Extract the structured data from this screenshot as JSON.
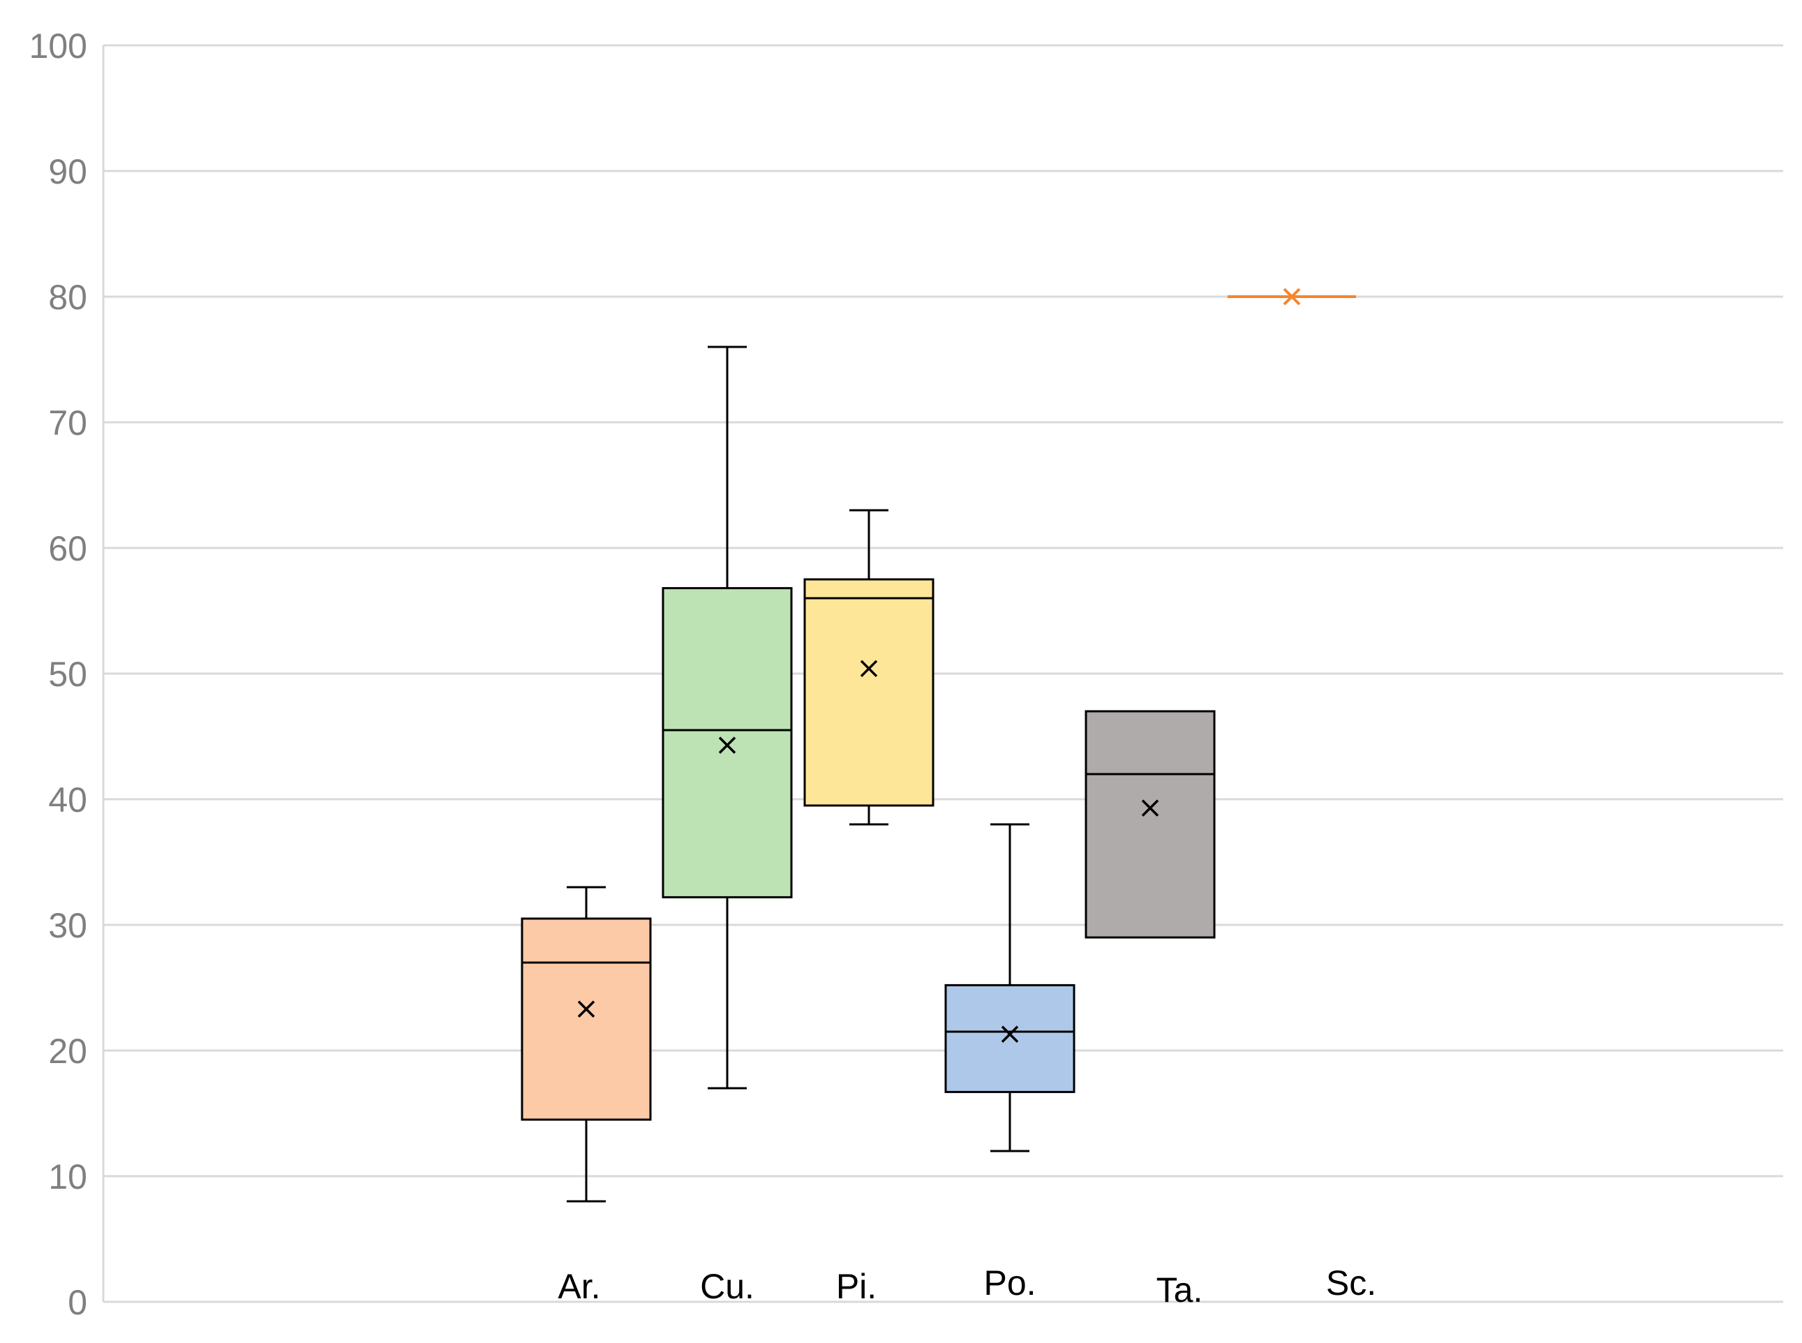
{
  "chart_data": {
    "type": "box",
    "title": "",
    "xlabel": "",
    "ylabel": "",
    "ylim": [
      0,
      100
    ],
    "yticks": [
      "0",
      "10",
      "20",
      "30",
      "40",
      "50",
      "60",
      "70",
      "80",
      "90",
      "100"
    ],
    "grid": true,
    "legend": "none",
    "series": [
      {
        "label": "Ar.",
        "min": 8,
        "q1": 14.5,
        "median": 27,
        "q3": 30.5,
        "max": 33,
        "mean": 23.3,
        "color": "#fdcaa8"
      },
      {
        "label": "Cu.",
        "min": 17,
        "q1": 32.2,
        "median": 45.5,
        "q3": 56.8,
        "max": 76,
        "mean": 44.3,
        "color": "#bde3b4"
      },
      {
        "label": "Pi.",
        "min": 38,
        "q1": 39.5,
        "median": 56,
        "q3": 57.5,
        "max": 63,
        "mean": 50.4,
        "color": "#fee698"
      },
      {
        "label": "Po.",
        "min": 12,
        "q1": 16.7,
        "median": 21.5,
        "q3": 25.2,
        "max": 38,
        "mean": 21.3,
        "color": "#aec8e9"
      },
      {
        "label": "Ta.",
        "min": 29,
        "q1": 29,
        "median": 42,
        "q3": 47,
        "max": 47,
        "mean": 39.3,
        "color": "#afabab"
      },
      {
        "label": "Sc.",
        "min": 80,
        "q1": 80,
        "median": 80,
        "q3": 80,
        "max": 80,
        "mean": 80,
        "color": "#f4862c"
      }
    ]
  }
}
